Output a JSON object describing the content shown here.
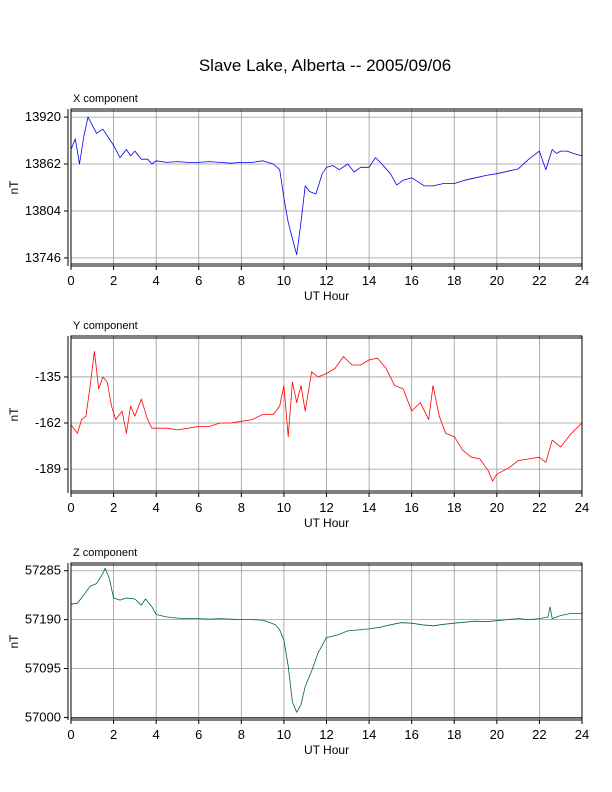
{
  "title": "Slave Lake, Alberta -- 2005/09/06",
  "chart_data": [
    {
      "type": "line",
      "title": "X component",
      "xlabel": "UT Hour",
      "ylabel": "nT",
      "xlim": [
        0,
        24
      ],
      "ylim": [
        13736,
        13930
      ],
      "xticks": [
        0,
        2,
        4,
        6,
        8,
        10,
        12,
        14,
        16,
        18,
        20,
        22,
        24
      ],
      "yticks": [
        13920,
        13862,
        13804,
        13746
      ],
      "grid": true,
      "color": "#0000ee",
      "series": [
        {
          "x": [
            0,
            0.2,
            0.4,
            0.6,
            0.8,
            1.0,
            1.2,
            1.5,
            1.8,
            2.0,
            2.3,
            2.6,
            2.8,
            3.0,
            3.3,
            3.6,
            3.8,
            4.0,
            4.5,
            5.0,
            5.5,
            6.0,
            6.5,
            7.0,
            7.5,
            8.0,
            8.5,
            9.0,
            9.5,
            9.8,
            10.0,
            10.2,
            10.4,
            10.6,
            10.8,
            11.0,
            11.2,
            11.5,
            11.8,
            12.0,
            12.3,
            12.6,
            13.0,
            13.3,
            13.6,
            14.0,
            14.3,
            14.6,
            15.0,
            15.3,
            15.6,
            16.0,
            16.3,
            16.6,
            17.0,
            17.5,
            18.0,
            18.5,
            19.0,
            19.5,
            20.0,
            20.5,
            21.0,
            21.5,
            22.0,
            22.3,
            22.6,
            22.8,
            23.0,
            23.3,
            23.6,
            24.0
          ],
          "y": [
            13880,
            13893,
            13862,
            13896,
            13920,
            13910,
            13900,
            13905,
            13893,
            13885,
            13870,
            13880,
            13872,
            13878,
            13868,
            13868,
            13862,
            13866,
            13864,
            13865,
            13864,
            13864,
            13865,
            13864,
            13863,
            13864,
            13864,
            13866,
            13862,
            13855,
            13820,
            13790,
            13770,
            13750,
            13790,
            13835,
            13828,
            13825,
            13850,
            13858,
            13860,
            13855,
            13862,
            13852,
            13858,
            13858,
            13870,
            13862,
            13850,
            13836,
            13842,
            13845,
            13840,
            13835,
            13835,
            13838,
            13838,
            13842,
            13845,
            13848,
            13850,
            13853,
            13856,
            13868,
            13878,
            13855,
            13880,
            13875,
            13878,
            13878,
            13875,
            13872
          ]
        }
      ]
    },
    {
      "type": "line",
      "title": "Y component",
      "xlabel": "UT Hour",
      "ylabel": "nT",
      "xlim": [
        0,
        24
      ],
      "ylim": [
        -203,
        -111
      ],
      "xticks": [
        0,
        2,
        4,
        6,
        8,
        10,
        12,
        14,
        16,
        18,
        20,
        22,
        24
      ],
      "yticks": [
        -135,
        -162,
        -189
      ],
      "grid": true,
      "color": "#ff0000",
      "series": [
        {
          "x": [
            0,
            0.3,
            0.5,
            0.7,
            0.9,
            1.1,
            1.3,
            1.5,
            1.7,
            1.9,
            2.1,
            2.4,
            2.6,
            2.8,
            3.0,
            3.3,
            3.6,
            3.8,
            4.0,
            4.5,
            5.0,
            5.5,
            6.0,
            6.5,
            7.0,
            7.5,
            8.0,
            8.5,
            9.0,
            9.5,
            9.8,
            10.0,
            10.2,
            10.4,
            10.6,
            10.8,
            11.0,
            11.3,
            11.6,
            12.0,
            12.4,
            12.8,
            13.2,
            13.6,
            14.0,
            14.4,
            14.8,
            15.2,
            15.6,
            16.0,
            16.4,
            16.8,
            17.0,
            17.3,
            17.6,
            18.0,
            18.4,
            18.8,
            19.2,
            19.6,
            19.8,
            20.0,
            20.3,
            20.6,
            21.0,
            21.5,
            22.0,
            22.3,
            22.6,
            23.0,
            23.5,
            24.0
          ],
          "y": [
            -163,
            -168,
            -160,
            -158,
            -140,
            -120,
            -142,
            -135,
            -138,
            -152,
            -160,
            -155,
            -168,
            -152,
            -158,
            -148,
            -160,
            -165,
            -165,
            -165,
            -166,
            -165,
            -164,
            -164,
            -162,
            -162,
            -161,
            -160,
            -157,
            -157,
            -152,
            -140,
            -170,
            -138,
            -150,
            -140,
            -155,
            -132,
            -135,
            -133,
            -130,
            -123,
            -128,
            -128,
            -125,
            -124,
            -130,
            -140,
            -142,
            -155,
            -150,
            -160,
            -140,
            -158,
            -168,
            -170,
            -178,
            -182,
            -183,
            -190,
            -196,
            -192,
            -190,
            -188,
            -184,
            -183,
            -182,
            -185,
            -172,
            -176,
            -168,
            -162
          ]
        }
      ]
    },
    {
      "type": "line",
      "title": "Z component",
      "xlabel": "UT Hour",
      "ylabel": "nT",
      "xlim": [
        0,
        24
      ],
      "ylim": [
        56995,
        57300
      ],
      "xticks": [
        0,
        2,
        4,
        6,
        8,
        10,
        12,
        14,
        16,
        18,
        20,
        22,
        24
      ],
      "yticks": [
        57285,
        57190,
        57095,
        57000
      ],
      "grid": true,
      "color": "#006633",
      "series": [
        {
          "x": [
            0,
            0.3,
            0.6,
            0.9,
            1.2,
            1.5,
            1.6,
            1.8,
            2.0,
            2.3,
            2.6,
            3.0,
            3.3,
            3.5,
            3.8,
            4.0,
            4.5,
            5.0,
            5.5,
            6.0,
            6.5,
            7.0,
            7.5,
            8.0,
            8.5,
            9.0,
            9.3,
            9.6,
            9.8,
            10.0,
            10.2,
            10.4,
            10.6,
            10.8,
            11.0,
            11.3,
            11.6,
            12.0,
            12.5,
            13.0,
            13.5,
            14.0,
            14.5,
            15.0,
            15.5,
            16.0,
            16.5,
            17.0,
            17.5,
            18.0,
            18.5,
            19.0,
            19.5,
            20.0,
            20.5,
            21.0,
            21.5,
            22.0,
            22.4,
            22.5,
            22.6,
            23.0,
            23.5,
            24.0
          ],
          "y": [
            57220,
            57222,
            57238,
            57255,
            57260,
            57280,
            57290,
            57270,
            57232,
            57228,
            57232,
            57230,
            57218,
            57230,
            57215,
            57200,
            57195,
            57193,
            57192,
            57192,
            57191,
            57192,
            57191,
            57190,
            57190,
            57189,
            57185,
            57180,
            57170,
            57150,
            57100,
            57030,
            57010,
            57025,
            57060,
            57090,
            57125,
            57155,
            57160,
            57168,
            57170,
            57172,
            57175,
            57180,
            57184,
            57183,
            57180,
            57178,
            57181,
            57183,
            57185,
            57187,
            57186,
            57188,
            57190,
            57192,
            57190,
            57192,
            57195,
            57215,
            57192,
            57198,
            57202,
            57202
          ]
        }
      ]
    }
  ]
}
